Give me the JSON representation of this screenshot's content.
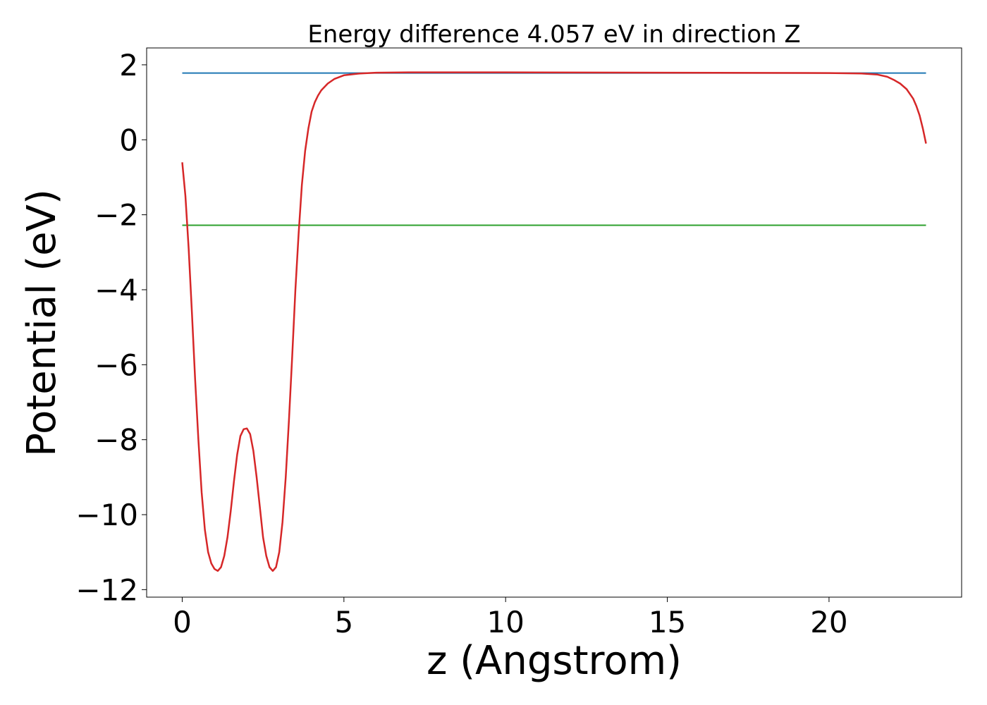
{
  "chart_data": {
    "type": "line",
    "title": "Energy difference 4.057 eV in direction Z",
    "xlabel": "z (Angstrom)",
    "ylabel": "Potential (eV)",
    "xlim": [
      -1.1,
      24.1
    ],
    "ylim": [
      -12.2,
      2.45
    ],
    "grid": false,
    "legend": "none",
    "x_ticks": [
      0,
      5,
      10,
      15,
      20
    ],
    "x_tick_labels": [
      "0",
      "5",
      "10",
      "15",
      "20"
    ],
    "y_ticks": [
      2,
      0,
      -2,
      -4,
      -6,
      -8,
      -10,
      -12
    ],
    "y_tick_labels": [
      "2",
      "0",
      "−2",
      "−4",
      "−6",
      "−8",
      "−10",
      "−12"
    ],
    "series": [
      {
        "color": "#1f77b4",
        "x": [
          0,
          23
        ],
        "y": [
          1.78,
          1.78
        ]
      },
      {
        "color": "#2ca02c",
        "x": [
          0,
          23
        ],
        "y": [
          -2.28,
          -2.28
        ]
      },
      {
        "color": "#d62728",
        "x": [
          0,
          0.1,
          0.2,
          0.3,
          0.4,
          0.5,
          0.6,
          0.7,
          0.8,
          0.9,
          1.0,
          1.1,
          1.2,
          1.3,
          1.4,
          1.5,
          1.6,
          1.7,
          1.8,
          1.9,
          2.0,
          2.1,
          2.2,
          2.3,
          2.4,
          2.5,
          2.6,
          2.7,
          2.8,
          2.9,
          3.0,
          3.1,
          3.2,
          3.3,
          3.4,
          3.5,
          3.6,
          3.7,
          3.8,
          3.9,
          4.0,
          4.1,
          4.2,
          4.3,
          4.5,
          4.7,
          5.0,
          5.5,
          6.0,
          7.0,
          10.0,
          15.0,
          20.0,
          21.0,
          21.5,
          21.8,
          22.0,
          22.2,
          22.4,
          22.6,
          22.7,
          22.8,
          22.9,
          23.0
        ],
        "y": [
          -0.6,
          -1.5,
          -2.9,
          -4.6,
          -6.4,
          -8.0,
          -9.4,
          -10.4,
          -11.0,
          -11.3,
          -11.45,
          -11.5,
          -11.4,
          -11.1,
          -10.6,
          -9.9,
          -9.1,
          -8.4,
          -7.9,
          -7.72,
          -7.7,
          -7.85,
          -8.3,
          -9.0,
          -9.8,
          -10.6,
          -11.1,
          -11.4,
          -11.5,
          -11.4,
          -11.0,
          -10.2,
          -9.0,
          -7.5,
          -5.8,
          -4.0,
          -2.5,
          -1.2,
          -0.3,
          0.3,
          0.75,
          1.0,
          1.18,
          1.32,
          1.5,
          1.62,
          1.72,
          1.77,
          1.79,
          1.8,
          1.8,
          1.79,
          1.78,
          1.77,
          1.74,
          1.68,
          1.6,
          1.5,
          1.35,
          1.1,
          0.9,
          0.65,
          0.3,
          -0.1
        ]
      }
    ]
  }
}
